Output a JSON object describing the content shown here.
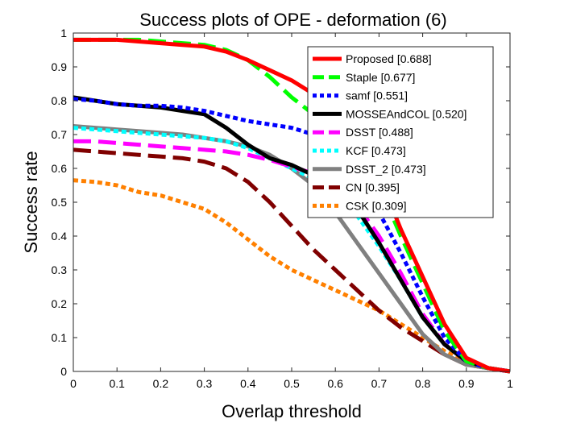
{
  "chart_data": {
    "type": "line",
    "title": "Success plots of OPE - deformation (6)",
    "xlabel": "Overlap threshold",
    "ylabel": "Success rate",
    "xlim": [
      0,
      1
    ],
    "ylim": [
      0,
      1
    ],
    "x_ticks": [
      "0",
      "0.1",
      "0.2",
      "0.3",
      "0.4",
      "0.5",
      "0.6",
      "0.7",
      "0.8",
      "0.9",
      "1"
    ],
    "y_ticks": [
      "0",
      "0.1",
      "0.2",
      "0.3",
      "0.4",
      "0.5",
      "0.6",
      "0.7",
      "0.8",
      "0.9",
      "1"
    ],
    "grid": false,
    "legend_position": "top-right",
    "x": [
      0,
      0.05,
      0.1,
      0.15,
      0.2,
      0.25,
      0.3,
      0.35,
      0.4,
      0.45,
      0.5,
      0.55,
      0.6,
      0.65,
      0.7,
      0.75,
      0.8,
      0.85,
      0.9,
      0.95,
      1
    ],
    "series": [
      {
        "name": "Proposed [0.688]",
        "color": "#ff0000",
        "dash": "solid",
        "values": [
          0.98,
          0.98,
          0.98,
          0.975,
          0.97,
          0.965,
          0.96,
          0.945,
          0.92,
          0.89,
          0.86,
          0.82,
          0.78,
          0.7,
          0.58,
          0.42,
          0.28,
          0.14,
          0.04,
          0.01,
          0
        ]
      },
      {
        "name": "Staple [0.677]",
        "color": "#00ff00",
        "dash": "dashed",
        "values": [
          0.98,
          0.98,
          0.98,
          0.98,
          0.975,
          0.97,
          0.965,
          0.95,
          0.92,
          0.87,
          0.81,
          0.76,
          0.72,
          0.66,
          0.55,
          0.4,
          0.26,
          0.12,
          0.03,
          0.01,
          0
        ]
      },
      {
        "name": "samf [0.551]",
        "color": "#0000ff",
        "dash": "dotted",
        "values": [
          0.805,
          0.8,
          0.79,
          0.785,
          0.785,
          0.78,
          0.77,
          0.755,
          0.74,
          0.73,
          0.72,
          0.7,
          0.66,
          0.58,
          0.47,
          0.35,
          0.22,
          0.1,
          0.03,
          0.01,
          0
        ]
      },
      {
        "name": "MOSSEAndCOL [0.520]",
        "color": "#000000",
        "dash": "solid",
        "values": [
          0.81,
          0.8,
          0.79,
          0.785,
          0.78,
          0.77,
          0.76,
          0.72,
          0.67,
          0.63,
          0.61,
          0.58,
          0.55,
          0.48,
          0.38,
          0.27,
          0.16,
          0.08,
          0.03,
          0.01,
          0
        ]
      },
      {
        "name": "DSST [0.488]",
        "color": "#ff00ff",
        "dash": "dashed",
        "values": [
          0.68,
          0.68,
          0.675,
          0.67,
          0.665,
          0.66,
          0.655,
          0.65,
          0.64,
          0.625,
          0.605,
          0.585,
          0.55,
          0.49,
          0.4,
          0.29,
          0.17,
          0.08,
          0.03,
          0.01,
          0
        ]
      },
      {
        "name": "KCF [0.473]",
        "color": "#00ffff",
        "dash": "dotted",
        "values": [
          0.72,
          0.715,
          0.71,
          0.705,
          0.7,
          0.695,
          0.69,
          0.68,
          0.66,
          0.63,
          0.6,
          0.57,
          0.53,
          0.46,
          0.37,
          0.27,
          0.16,
          0.08,
          0.03,
          0.01,
          0
        ]
      },
      {
        "name": "DSST_2 [0.473]",
        "color": "#808080",
        "dash": "solid",
        "values": [
          0.725,
          0.72,
          0.715,
          0.71,
          0.705,
          0.7,
          0.69,
          0.68,
          0.665,
          0.64,
          0.6,
          0.55,
          0.47,
          0.38,
          0.29,
          0.2,
          0.11,
          0.05,
          0.02,
          0.01,
          0
        ]
      },
      {
        "name": "CN [0.395]",
        "color": "#800000",
        "dash": "dashed",
        "values": [
          0.655,
          0.65,
          0.645,
          0.64,
          0.635,
          0.63,
          0.62,
          0.6,
          0.56,
          0.5,
          0.43,
          0.36,
          0.3,
          0.24,
          0.18,
          0.13,
          0.09,
          0.05,
          0.02,
          0.01,
          0
        ]
      },
      {
        "name": "CSK [0.309]",
        "color": "#ff8000",
        "dash": "dotted",
        "values": [
          0.565,
          0.56,
          0.55,
          0.53,
          0.52,
          0.5,
          0.48,
          0.44,
          0.39,
          0.34,
          0.3,
          0.27,
          0.24,
          0.21,
          0.18,
          0.14,
          0.1,
          0.06,
          0.03,
          0.01,
          0
        ]
      }
    ]
  }
}
